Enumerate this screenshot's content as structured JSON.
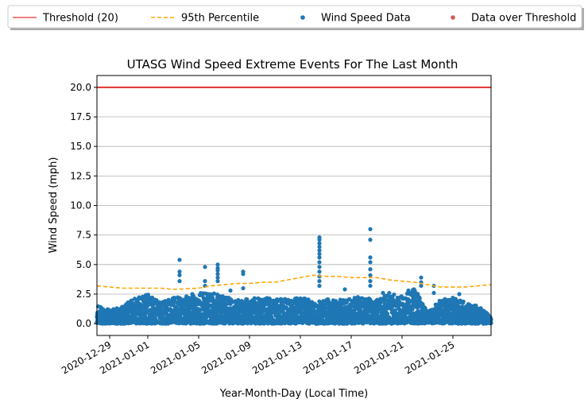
{
  "chart_data": {
    "type": "scatter",
    "title": "UTASG Wind Speed Extreme Events For The Last Month",
    "xlabel": "Year-Month-Day (Local Time)",
    "ylabel": "Wind Speed (mph)",
    "xlim": [
      "2020-12-28",
      "2021-01-28"
    ],
    "ylim": [
      -1.0,
      21.0
    ],
    "x_ticks": [
      "2020-12-29",
      "2021-01-01",
      "2021-01-05",
      "2021-01-09",
      "2021-01-13",
      "2021-01-17",
      "2021-01-21",
      "2021-01-25"
    ],
    "y_ticks": [
      0.0,
      2.5,
      5.0,
      7.5,
      10.0,
      12.5,
      15.0,
      17.5,
      20.0
    ],
    "y_tick_labels": [
      "0.0",
      "2.5",
      "5.0",
      "7.5",
      "10.0",
      "12.5",
      "15.0",
      "17.5",
      "20.0"
    ],
    "grid": "horizontal",
    "legend_position": "top, outside plot, single row",
    "legend": [
      {
        "label": "Threshold (20)",
        "kind": "line",
        "color": "#f08080"
      },
      {
        "label": "95th Percentile",
        "kind": "dashed-line",
        "color": "#ffa500"
      },
      {
        "label": "Wind Speed Data",
        "kind": "point",
        "color": "#1f77b4"
      },
      {
        "label": "Data over Threshold",
        "kind": "point",
        "color": "#cd5c5c"
      }
    ],
    "threshold": {
      "label": "Threshold (20)",
      "value": 20,
      "color": "#e03030"
    },
    "percentile_95": {
      "label": "95th Percentile",
      "color": "#ffa500",
      "points": [
        [
          "2020-12-28",
          3.2
        ],
        [
          "2020-12-30",
          3.0
        ],
        [
          "2021-01-02",
          3.0
        ],
        [
          "2021-01-03",
          2.9
        ],
        [
          "2021-01-05",
          3.0
        ],
        [
          "2021-01-06",
          3.2
        ],
        [
          "2021-01-08",
          3.4
        ],
        [
          "2021-01-09",
          3.4
        ],
        [
          "2021-01-10",
          3.5
        ],
        [
          "2021-01-11",
          3.5
        ],
        [
          "2021-01-12",
          3.7
        ],
        [
          "2021-01-13",
          3.9
        ],
        [
          "2021-01-14",
          4.1
        ],
        [
          "2021-01-15",
          4.0
        ],
        [
          "2021-01-16",
          4.0
        ],
        [
          "2021-01-17",
          3.9
        ],
        [
          "2021-01-19",
          3.9
        ],
        [
          "2021-01-20",
          3.7
        ],
        [
          "2021-01-22",
          3.5
        ],
        [
          "2021-01-23",
          3.3
        ],
        [
          "2021-01-24",
          3.1
        ],
        [
          "2021-01-26",
          3.1
        ],
        [
          "2021-01-28",
          3.3
        ]
      ]
    },
    "series": [
      {
        "name": "Wind Speed Data",
        "color": "#1f77b4",
        "envelope": [
          [
            "2020-12-28",
            1.6
          ],
          [
            "2020-12-29",
            1.2
          ],
          [
            "2020-12-30",
            1.5
          ],
          [
            "2020-12-31",
            2.2
          ],
          [
            "2021-01-01",
            2.5
          ],
          [
            "2021-01-02",
            1.8
          ],
          [
            "2021-01-03",
            2.2
          ],
          [
            "2021-01-04",
            2.3
          ],
          [
            "2021-01-05",
            2.6
          ],
          [
            "2021-01-06",
            2.6
          ],
          [
            "2021-01-07",
            2.4
          ],
          [
            "2021-01-08",
            2.0
          ],
          [
            "2021-01-09",
            2.2
          ],
          [
            "2021-01-10",
            2.2
          ],
          [
            "2021-01-11",
            2.1
          ],
          [
            "2021-01-12",
            2.1
          ],
          [
            "2021-01-13",
            2.2
          ],
          [
            "2021-01-14",
            2.0
          ],
          [
            "2021-01-15",
            2.1
          ],
          [
            "2021-01-16",
            2.0
          ],
          [
            "2021-01-17",
            2.2
          ],
          [
            "2021-01-18",
            2.3
          ],
          [
            "2021-01-19",
            2.0
          ],
          [
            "2021-01-20",
            2.6
          ],
          [
            "2021-01-21",
            2.3
          ],
          [
            "2021-01-22",
            3.0
          ],
          [
            "2021-01-23",
            1.0
          ],
          [
            "2021-01-24",
            2.0
          ],
          [
            "2021-01-25",
            2.3
          ],
          [
            "2021-01-26",
            1.8
          ],
          [
            "2021-01-27",
            1.5
          ],
          [
            "2021-01-28",
            0.6
          ]
        ],
        "peaks": [
          [
            "2021-01-03",
            5.4
          ],
          [
            "2021-01-03",
            4.4
          ],
          [
            "2021-01-03",
            4.1
          ],
          [
            "2021-01-03",
            3.6
          ],
          [
            "2021-01-04",
            2.5
          ],
          [
            "2021-01-05",
            4.8
          ],
          [
            "2021-01-05",
            3.6
          ],
          [
            "2021-01-05",
            3.2
          ],
          [
            "2021-01-06",
            5.0
          ],
          [
            "2021-01-06",
            4.7
          ],
          [
            "2021-01-06",
            4.5
          ],
          [
            "2021-01-06",
            4.2
          ],
          [
            "2021-01-06",
            3.9
          ],
          [
            "2021-01-06",
            3.6
          ],
          [
            "2021-01-07",
            2.8
          ],
          [
            "2021-01-08",
            4.4
          ],
          [
            "2021-01-08",
            4.2
          ],
          [
            "2021-01-08",
            3.0
          ],
          [
            "2021-01-14",
            7.3
          ],
          [
            "2021-01-14",
            7.1
          ],
          [
            "2021-01-14",
            6.8
          ],
          [
            "2021-01-14",
            6.5
          ],
          [
            "2021-01-14",
            6.2
          ],
          [
            "2021-01-14",
            5.9
          ],
          [
            "2021-01-14",
            5.6
          ],
          [
            "2021-01-14",
            5.2
          ],
          [
            "2021-01-14",
            4.8
          ],
          [
            "2021-01-14",
            4.4
          ],
          [
            "2021-01-14",
            4.0
          ],
          [
            "2021-01-14",
            3.6
          ],
          [
            "2021-01-14",
            3.2
          ],
          [
            "2021-01-16",
            2.9
          ],
          [
            "2021-01-18",
            8.0
          ],
          [
            "2021-01-18",
            7.1
          ],
          [
            "2021-01-18",
            5.6
          ],
          [
            "2021-01-18",
            5.2
          ],
          [
            "2021-01-18",
            4.6
          ],
          [
            "2021-01-18",
            4.1
          ],
          [
            "2021-01-18",
            3.6
          ],
          [
            "2021-01-18",
            3.2
          ],
          [
            "2021-01-19",
            2.6
          ],
          [
            "2021-01-21",
            2.8
          ],
          [
            "2021-01-22",
            3.9
          ],
          [
            "2021-01-22",
            3.5
          ],
          [
            "2021-01-22",
            3.2
          ],
          [
            "2021-01-23",
            3.2
          ],
          [
            "2021-01-23",
            2.6
          ],
          [
            "2021-01-25",
            2.5
          ]
        ]
      },
      {
        "name": "Data over Threshold",
        "color": "#cd5c5c",
        "points": []
      }
    ]
  }
}
